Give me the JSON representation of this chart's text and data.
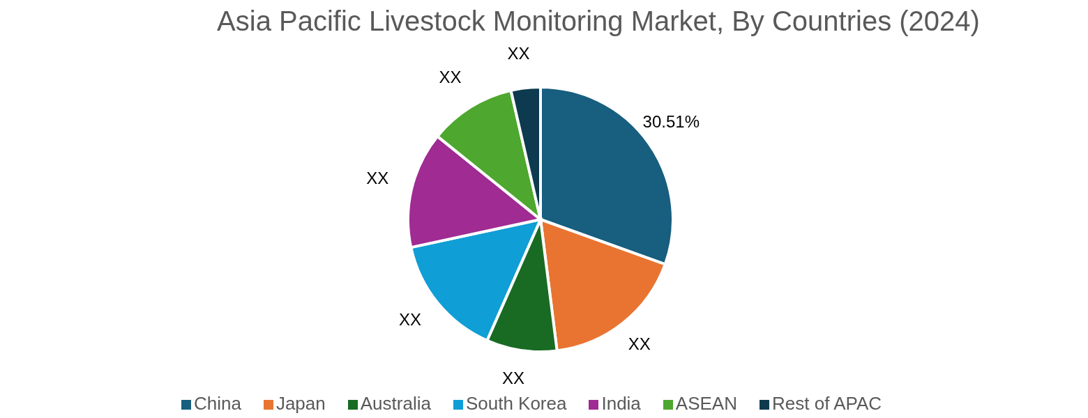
{
  "chart_data": {
    "type": "pie",
    "title": "Asia Pacific Livestock Monitoring Market, By Countries (2024)",
    "categories": [
      "China",
      "Japan",
      "Australia",
      "South Korea",
      "India",
      "ASEAN",
      "Rest of APAC"
    ],
    "values": [
      30.51,
      17.5,
      8.6,
      15,
      14.2,
      10.6,
      3.59
    ],
    "colors": [
      "#175e7f",
      "#e97431",
      "#196b24",
      "#0f9ed5",
      "#a02b93",
      "#4ea72e",
      "#0e3a4f"
    ],
    "value_labels": [
      "30.51%",
      "XX",
      "XX",
      "XX",
      "XX",
      "XX",
      "XX"
    ],
    "legend": "bottom"
  }
}
